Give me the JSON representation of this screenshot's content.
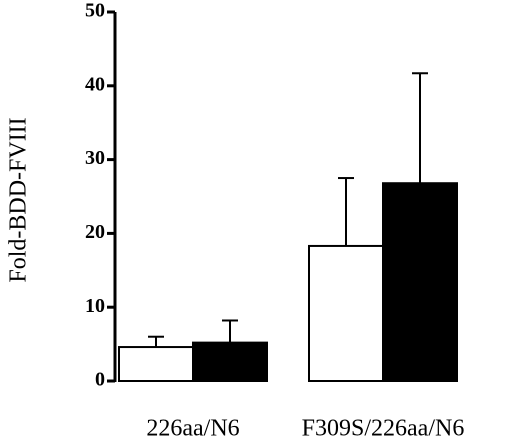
{
  "chart_data": {
    "type": "bar",
    "y_label": "Fold-BDD-FVIII",
    "categories": [
      "226aa/N6",
      "F309S/226aa/N6"
    ],
    "series": [
      {
        "color": "#ffffff",
        "values": [
          4.6,
          18.3
        ],
        "errors": [
          1.4,
          9.2
        ]
      },
      {
        "color": "#000000",
        "values": [
          5.2,
          26.8
        ],
        "errors": [
          3.0,
          14.9
        ]
      }
    ],
    "ylim": [
      0,
      50
    ],
    "yticks": [
      0,
      10,
      20,
      30,
      40,
      50
    ],
    "grid": false
  }
}
